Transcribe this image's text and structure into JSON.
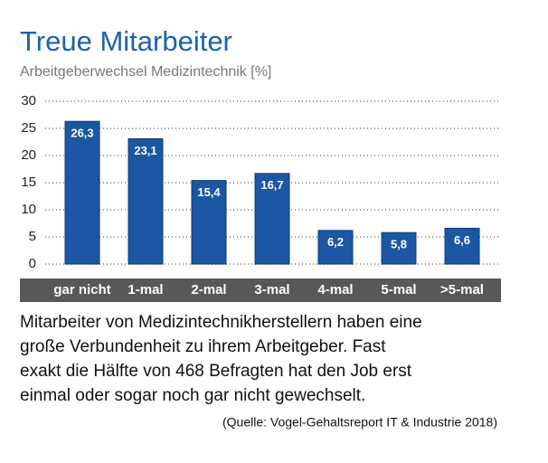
{
  "chart_data": {
    "type": "bar",
    "title": "Treue Mitarbeiter",
    "subtitle": "Arbeitgeberwechsel Medizintechnik [%]",
    "categories": [
      "gar nicht",
      "1-mal",
      "2-mal",
      "3-mal",
      "4-mal",
      "5-mal",
      ">5-mal"
    ],
    "values": [
      26.3,
      23.1,
      15.4,
      16.7,
      6.2,
      5.8,
      6.6
    ],
    "value_labels": [
      "26,3",
      "23,1",
      "15,4",
      "16,7",
      "6,2",
      "5,8",
      "6,6"
    ],
    "color": "#1b57a3",
    "ylim": [
      0,
      30
    ],
    "yticks": [
      0,
      5,
      10,
      15,
      20,
      25,
      30
    ],
    "grid": true,
    "caption": [
      "Mitarbeiter von Medizintechnikherstellern haben eine",
      "große Verbundenheit zu ihrem Arbeitgeber. Fast",
      "exakt die Hälfte von 468 Befragten hat den Job erst",
      "einmal oder sogar noch gar nicht gewechselt."
    ],
    "source": "(Quelle: Vogel-Gehaltsreport IT & Industrie 2018)"
  }
}
